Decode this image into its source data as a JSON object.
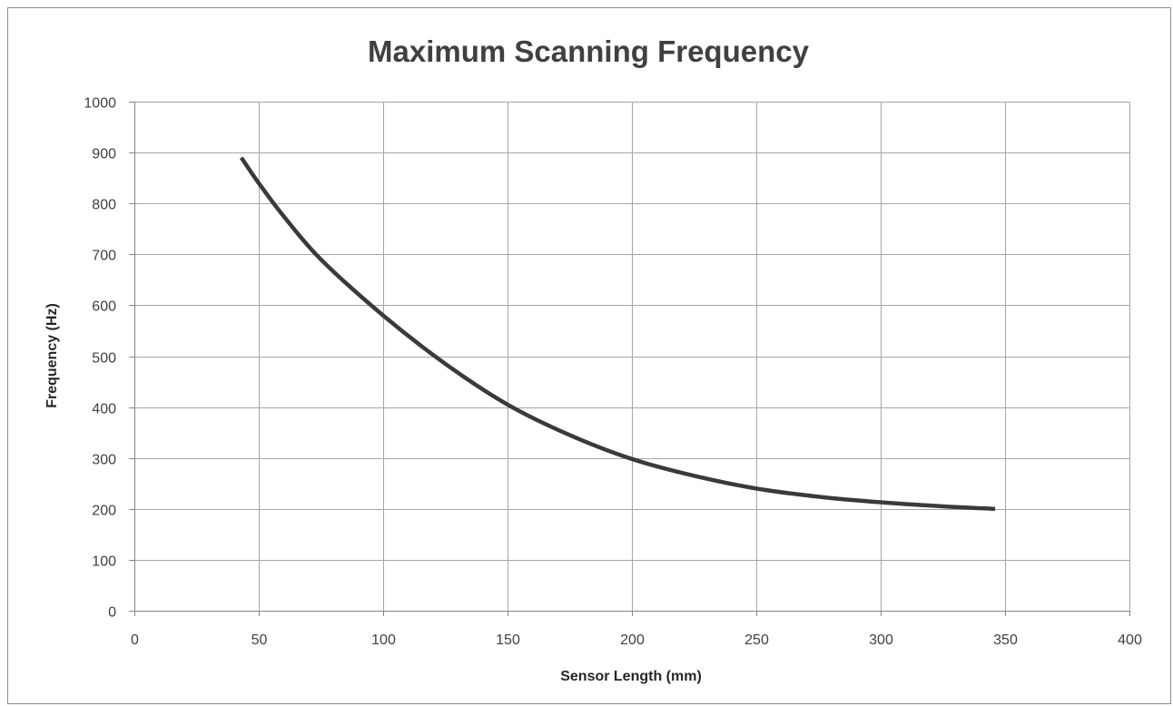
{
  "chart_data": {
    "type": "line",
    "title": "Maximum Scanning Frequency",
    "xlabel": "Sensor Length (mm)",
    "ylabel": "Frequency (Hz)",
    "xlim": [
      0,
      400
    ],
    "ylim": [
      0,
      1000
    ],
    "x_ticks": [
      "0",
      "50",
      "100",
      "150",
      "200",
      "250",
      "300",
      "350",
      "400"
    ],
    "y_ticks": [
      "0",
      "100",
      "200",
      "300",
      "400",
      "500",
      "600",
      "700",
      "800",
      "900",
      "1000"
    ],
    "grid": true,
    "legend": "none",
    "series": [
      {
        "color": "#3a3a3a",
        "x": [
          43,
          50,
          60,
          75,
          100,
          125,
          150,
          175,
          200,
          225,
          250,
          275,
          300,
          325,
          346
        ],
        "y": [
          890,
          840,
          775,
          690,
          580,
          485,
          405,
          345,
          298,
          265,
          240,
          224,
          213,
          205,
          200
        ]
      }
    ]
  }
}
